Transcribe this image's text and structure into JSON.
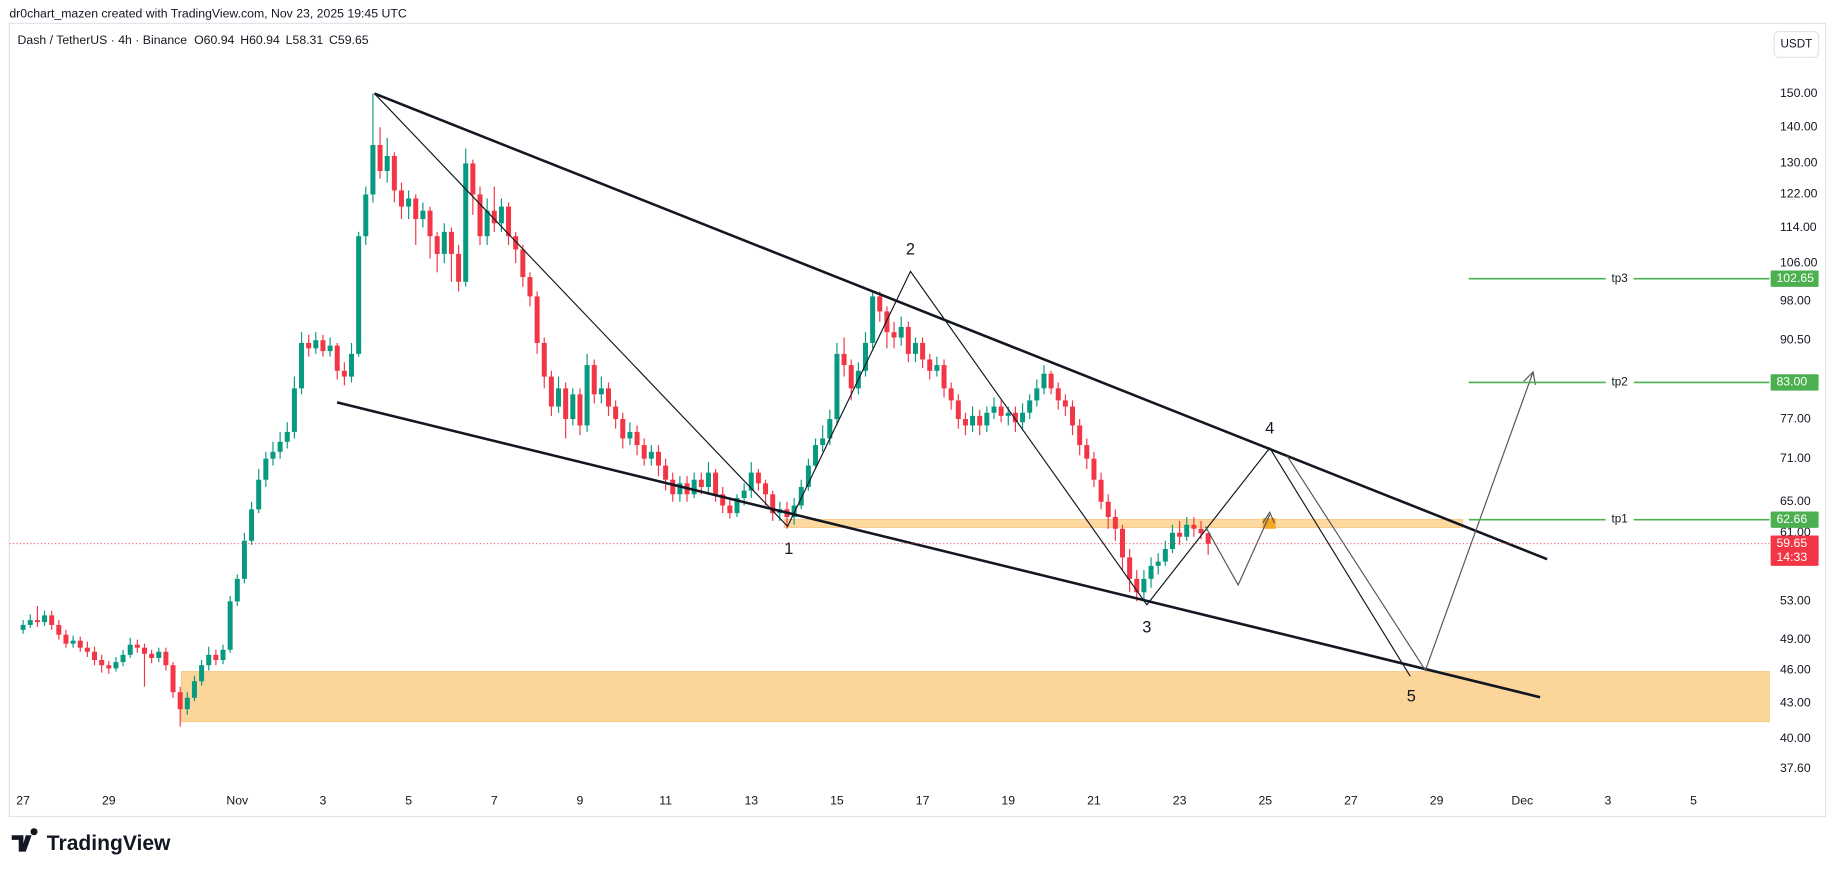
{
  "header": {
    "credit": "dr0chart_mazen created with TradingView.com, Nov 23, 2025 19:45 UTC",
    "symbol": "Dash / TetherUS · 4h · Binance",
    "ohlc": [
      "O60.94",
      "H60.94",
      "L58.31",
      "C59.65"
    ],
    "currency": "USDT"
  },
  "chart_data": {
    "type": "candlestick",
    "open": [
      50,
      50.5,
      51,
      50.8,
      51.5,
      50.5,
      49.5,
      48.6,
      48.9,
      48.2,
      47.8,
      47,
      46.5,
      46.2,
      46.8,
      47.5,
      48.5,
      48.2,
      47.6,
      47.2,
      47.8,
      46.5,
      44,
      42.5,
      43.5,
      45,
      46.5,
      47.5,
      47,
      48,
      53,
      55.5,
      60,
      64,
      68,
      71,
      72,
      73.5,
      75,
      82,
      90,
      89,
      90.5,
      88.5,
      89.5,
      85,
      84,
      88,
      112,
      122,
      135,
      128,
      132,
      123,
      119,
      121,
      116,
      118,
      112,
      108,
      113,
      108,
      102,
      130,
      122,
      112,
      118,
      115,
      119,
      112,
      109,
      103,
      99,
      90,
      84,
      79,
      82,
      77,
      81,
      76,
      86,
      81,
      82,
      79,
      77,
      74,
      75,
      73,
      71,
      72,
      70,
      68,
      66,
      67.5,
      66,
      68,
      67,
      69,
      66,
      64.5,
      63.5,
      65.5,
      66.5,
      69,
      67.5,
      66,
      63.5,
      64,
      63,
      64.5,
      67,
      70,
      73,
      74,
      77,
      88,
      86,
      82,
      85,
      90,
      99,
      96,
      92,
      91,
      93,
      88,
      90,
      87,
      85,
      86,
      82,
      80,
      77,
      76,
      77.5,
      76,
      78,
      79,
      77.5,
      78,
      76.5,
      78,
      80,
      82,
      84.5,
      82,
      80,
      79,
      76,
      73,
      71,
      68,
      65,
      63,
      61.5,
      58,
      55.5,
      54,
      55.5,
      57,
      57.5,
      59,
      61,
      60.5,
      62,
      61.5,
      60.94
    ],
    "high": [
      51,
      51.6,
      52.5,
      52,
      52,
      51,
      50,
      49.4,
      49.3,
      48.8,
      48.3,
      47.5,
      46.9,
      47.3,
      48,
      49.2,
      49,
      48.6,
      48,
      48.2,
      48.2,
      46.8,
      44.5,
      44,
      45.5,
      47,
      48.3,
      48,
      48.5,
      53.6,
      56,
      61,
      65,
      69.5,
      72,
      73.5,
      75,
      76.5,
      84,
      92,
      91.5,
      92,
      91.5,
      91,
      90,
      86.5,
      90,
      113,
      124,
      150,
      140,
      137,
      133,
      125,
      123,
      122,
      120,
      119,
      113,
      115,
      114,
      110,
      134,
      131,
      124,
      121,
      124,
      121,
      120,
      113,
      110,
      104,
      100,
      91,
      85,
      84,
      83,
      82,
      82,
      88,
      87,
      84,
      83,
      80,
      78,
      76.5,
      76,
      74,
      73,
      73,
      71,
      69,
      68.5,
      68.5,
      69,
      69,
      70.5,
      69.5,
      67,
      65.5,
      66,
      67.5,
      70.5,
      69.5,
      68,
      66.5,
      65,
      65,
      65.5,
      68,
      71,
      74,
      76,
      78.5,
      90,
      91,
      87,
      86.5,
      92,
      100,
      100,
      97,
      94,
      95,
      94,
      91,
      91,
      88,
      87.5,
      87,
      83,
      81,
      78,
      79,
      78.5,
      79,
      80.5,
      80,
      79,
      79,
      79.5,
      81,
      83.5,
      86,
      85,
      83,
      81,
      80,
      77,
      74,
      72,
      69,
      66,
      64,
      62,
      59,
      56.5,
      56.5,
      58,
      58.5,
      60,
      62,
      62.5,
      63,
      63,
      62.5,
      60.94
    ],
    "low": [
      49.6,
      50.2,
      50.3,
      50.4,
      50,
      49,
      48.2,
      48.2,
      47.8,
      47.3,
      46.5,
      45.8,
      45.7,
      45.9,
      46.4,
      47.2,
      47.7,
      44.5,
      46.7,
      46.8,
      46,
      43.5,
      41,
      42,
      43.2,
      44.6,
      46,
      46.5,
      46.6,
      47.7,
      52.5,
      55,
      59.5,
      63.5,
      67,
      70,
      71,
      72.5,
      74,
      81,
      87.5,
      88,
      87.5,
      87.5,
      83.5,
      82.5,
      83,
      87.5,
      110,
      120,
      126,
      125,
      120,
      116,
      116,
      110,
      114,
      107,
      104,
      106,
      102,
      100,
      101,
      117,
      110,
      110,
      113,
      113,
      110,
      106,
      101,
      97,
      88,
      82,
      77.5,
      78,
      74,
      76,
      74.5,
      75,
      79.5,
      79.5,
      77.5,
      75.5,
      72.5,
      73,
      71.5,
      70,
      70,
      68.5,
      66.5,
      65,
      65,
      65,
      65.5,
      66,
      66,
      65,
      63.5,
      62.8,
      63,
      64.5,
      65.5,
      66.5,
      64.5,
      62.5,
      62.5,
      61.5,
      62,
      64,
      66.5,
      69.5,
      72,
      73,
      76,
      84,
      80,
      81,
      84,
      89,
      94,
      89,
      89,
      89.5,
      86.5,
      86.5,
      85.5,
      83.5,
      84,
      80.5,
      78.5,
      75.5,
      74.5,
      75,
      74.5,
      75,
      77,
      76.5,
      76,
      75,
      75.5,
      77,
      79,
      81,
      81,
      78.5,
      77.5,
      74.5,
      71.5,
      69.5,
      67,
      64,
      61.5,
      60,
      56.5,
      54,
      53,
      53,
      54.5,
      56,
      57,
      58.5,
      59.5,
      60,
      60.5,
      60.2,
      58.31
    ],
    "close": [
      50.5,
      51,
      50.8,
      51.5,
      50.5,
      49.5,
      48.6,
      48.9,
      48.2,
      47.8,
      47,
      46.5,
      46.2,
      46.8,
      47.5,
      48.5,
      48.2,
      47.6,
      47.2,
      47.8,
      46.5,
      44,
      42.5,
      43.5,
      45,
      46.5,
      47.5,
      47,
      48,
      53,
      55.5,
      60,
      64,
      68,
      71,
      72,
      73.5,
      75,
      82,
      90,
      89,
      90.5,
      88.5,
      89.5,
      85,
      84,
      88,
      112,
      122,
      135,
      128,
      132,
      123,
      119,
      121,
      116,
      118,
      112,
      108,
      113,
      108,
      102,
      130,
      122,
      112,
      118,
      115,
      119,
      112,
      109,
      103,
      99,
      90,
      84,
      79,
      82,
      77,
      81,
      76,
      86,
      81,
      82,
      79,
      77,
      74,
      75,
      73,
      71,
      72,
      70,
      68,
      66,
      67.5,
      66,
      68,
      67,
      69,
      66,
      64.5,
      63.5,
      65.5,
      66.5,
      69,
      67.5,
      66,
      63.5,
      64,
      63,
      64.5,
      67,
      70,
      73,
      74,
      77,
      88,
      86,
      82,
      85,
      90,
      99,
      96,
      92,
      91,
      93,
      88,
      90,
      87,
      85,
      86,
      82,
      80,
      77,
      76,
      77.5,
      76,
      78,
      79,
      77.5,
      78,
      76.5,
      78,
      80,
      82,
      84.5,
      82,
      80,
      79,
      76,
      73,
      71,
      68,
      65,
      63,
      61.5,
      58,
      55.5,
      54,
      55.5,
      57,
      57.5,
      59,
      61,
      60.5,
      62,
      61.5,
      60.94,
      59.65
    ],
    "up_color": "#089981",
    "down_color": "#f23645",
    "log_scale": true,
    "xlim": [
      -1.6,
      244.3
    ],
    "ylim": [
      36.3,
      173.2
    ],
    "xticks": [
      {
        "value": 0,
        "label": "27"
      },
      {
        "value": 12,
        "label": "29"
      },
      {
        "value": 30,
        "label": "Nov"
      },
      {
        "value": 42,
        "label": "3"
      },
      {
        "value": 54,
        "label": "5"
      },
      {
        "value": 66,
        "label": "7"
      },
      {
        "value": 78,
        "label": "9"
      },
      {
        "value": 90,
        "label": "11"
      },
      {
        "value": 102,
        "label": "13"
      },
      {
        "value": 114,
        "label": "15"
      },
      {
        "value": 126,
        "label": "17"
      },
      {
        "value": 138,
        "label": "19"
      },
      {
        "value": 150,
        "label": "21"
      },
      {
        "value": 162,
        "label": "23"
      },
      {
        "value": 174,
        "label": "25"
      },
      {
        "value": 186,
        "label": "27"
      },
      {
        "value": 198,
        "label": "29"
      },
      {
        "value": 210,
        "label": "Dec"
      },
      {
        "value": 222,
        "label": "3"
      },
      {
        "value": 234,
        "label": "5"
      }
    ],
    "yticks": [
      {
        "value": 150,
        "label": "150.00"
      },
      {
        "value": 140,
        "label": "140.00"
      },
      {
        "value": 130,
        "label": "130.00"
      },
      {
        "value": 122,
        "label": "122.00"
      },
      {
        "value": 114,
        "label": "114.00"
      },
      {
        "value": 106,
        "label": "106.00"
      },
      {
        "value": 98,
        "label": "98.00"
      },
      {
        "value": 90.5,
        "label": "90.50"
      },
      {
        "value": 77,
        "label": "77.00"
      },
      {
        "value": 71,
        "label": "71.00"
      },
      {
        "value": 65,
        "label": "65.00"
      },
      {
        "value": 61,
        "label": "61.00"
      },
      {
        "value": 53,
        "label": "53.00"
      },
      {
        "value": 49,
        "label": "49.00"
      },
      {
        "value": 46,
        "label": "46.00"
      },
      {
        "value": 43,
        "label": "43.00"
      },
      {
        "value": 40,
        "label": "40.00"
      },
      {
        "value": 37.6,
        "label": "37.60"
      }
    ],
    "levels": [
      {
        "name": "tp3",
        "value": 102.65,
        "color": "#4caf50"
      },
      {
        "name": "tp2",
        "value": 83,
        "label": "83.00",
        "color": "#4caf50"
      },
      {
        "name": "tp1",
        "value": 62.66,
        "color": "#4caf50"
      }
    ],
    "last_price": {
      "value": 59.65,
      "countdown": "14:33",
      "color": "#f23645"
    },
    "wave_labels": [
      "1",
      "2",
      "3",
      "4",
      "5"
    ]
  },
  "footer": {
    "brand": "TradingView"
  }
}
